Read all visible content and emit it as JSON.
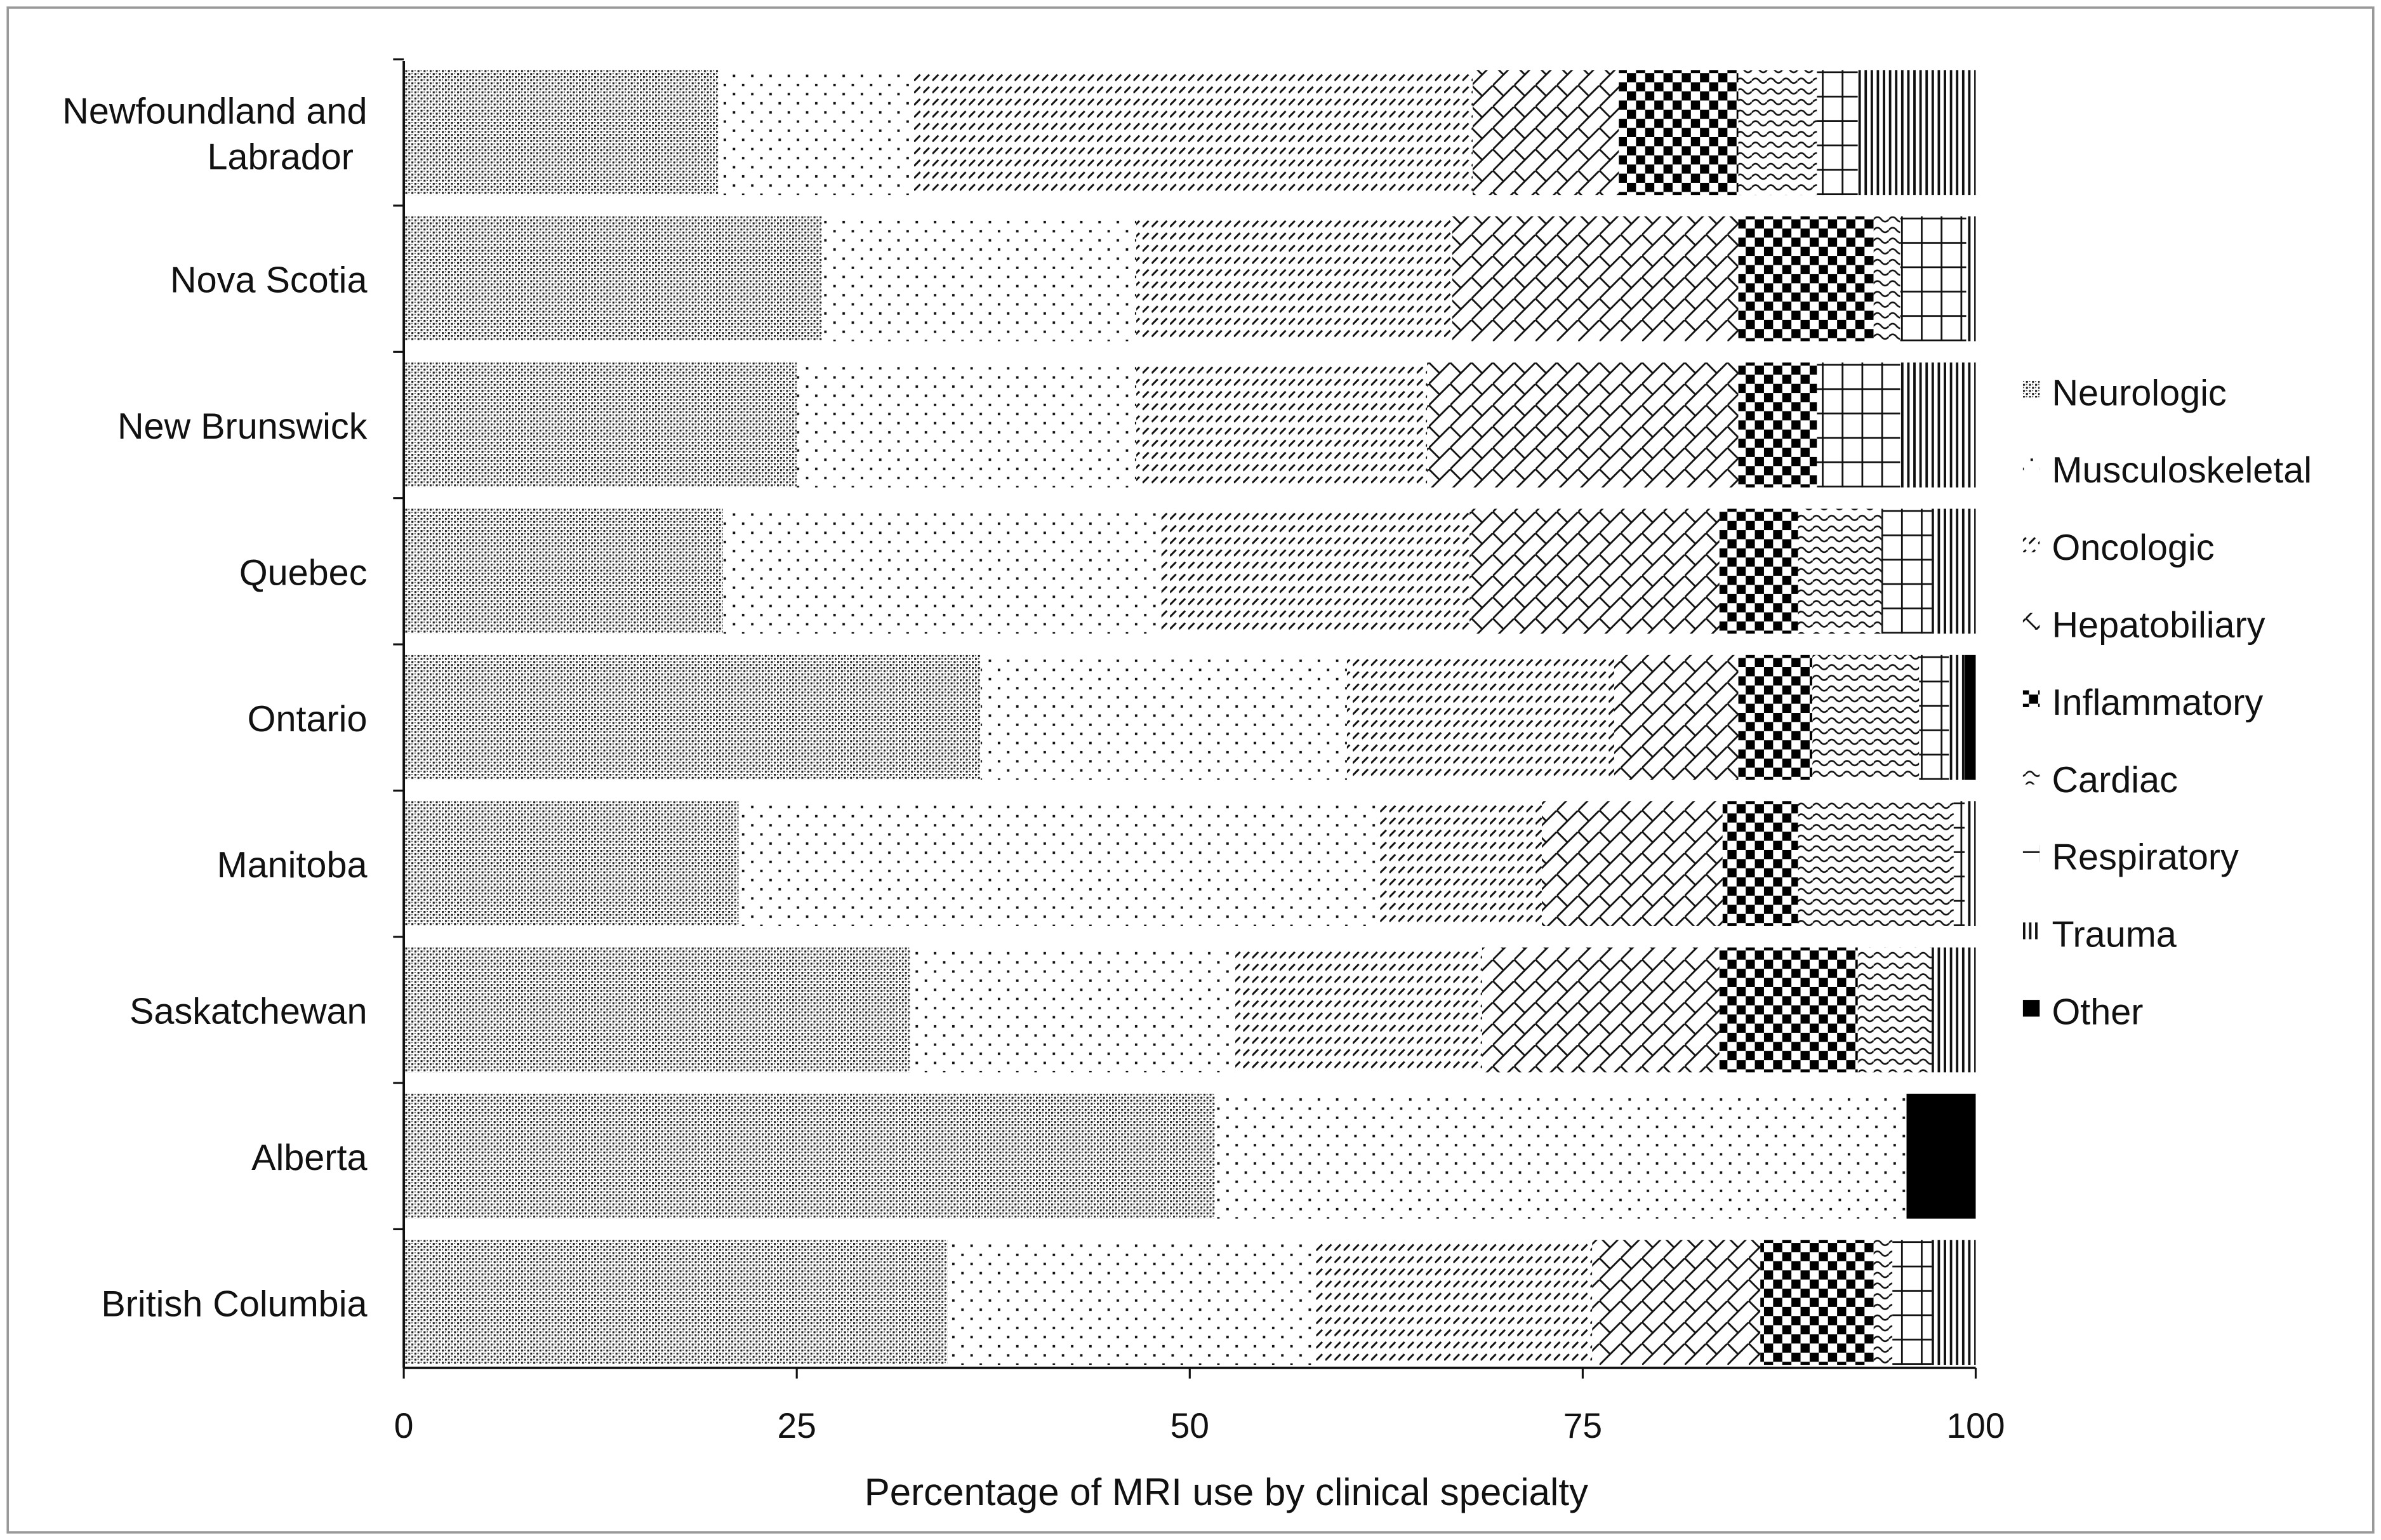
{
  "chart_data": {
    "type": "bar",
    "orientation": "horizontal",
    "stacked": true,
    "title": "",
    "xlabel": "Percentage of MRI use by clinical specialty",
    "ylabel": "",
    "xlim": [
      0,
      100
    ],
    "xticks": [
      "0",
      "25",
      "50",
      "75",
      "100"
    ],
    "grid": false,
    "legend_position": "right",
    "categories": [
      "Newfoundland and Labrador",
      "Nova Scotia",
      "New Brunswick",
      "Quebec",
      "Ontario",
      "Manitoba",
      "Saskatchewan",
      "Alberta",
      "British Columbia"
    ],
    "series": [
      {
        "name": "Neurologic",
        "pattern": "dense-crosshatch",
        "values": [
          20.0,
          26.6,
          25.0,
          20.3,
          36.7,
          21.3,
          32.2,
          51.6,
          34.6
        ]
      },
      {
        "name": "Musculoskeletal",
        "pattern": "sparse-dots",
        "values": [
          12.3,
          20.0,
          21.6,
          27.9,
          23.3,
          40.7,
          20.7,
          44.0,
          23.4
        ]
      },
      {
        "name": "Oncologic",
        "pattern": "diagonal-dashes",
        "values": [
          35.7,
          20.1,
          18.5,
          19.6,
          17.0,
          10.4,
          15.7,
          0,
          17.6
        ]
      },
      {
        "name": "Hepatobiliary",
        "pattern": "diagonal-lattice",
        "values": [
          9.3,
          18.2,
          19.8,
          15.9,
          7.9,
          11.5,
          15.1,
          0,
          10.7
        ]
      },
      {
        "name": "Inflammatory",
        "pattern": "checkerboard",
        "values": [
          7.6,
          8.6,
          5.0,
          5.0,
          4.7,
          4.8,
          8.8,
          0,
          7.2
        ]
      },
      {
        "name": "Cardiac",
        "pattern": "waves",
        "values": [
          5.0,
          1.7,
          0,
          5.3,
          6.8,
          9.9,
          4.7,
          0,
          1.2
        ]
      },
      {
        "name": "Respiratory",
        "pattern": "grid",
        "values": [
          2.6,
          4.2,
          5.3,
          3.2,
          1.9,
          0.7,
          0,
          0,
          2.5
        ]
      },
      {
        "name": "Trauma",
        "pattern": "vertical-lines",
        "values": [
          7.5,
          0.6,
          4.8,
          2.8,
          1.0,
          0.7,
          2.8,
          0,
          2.8
        ]
      },
      {
        "name": "Other",
        "pattern": "solid",
        "values": [
          0,
          0,
          0,
          0,
          0.7,
          0,
          0,
          4.4,
          0
        ]
      }
    ]
  }
}
